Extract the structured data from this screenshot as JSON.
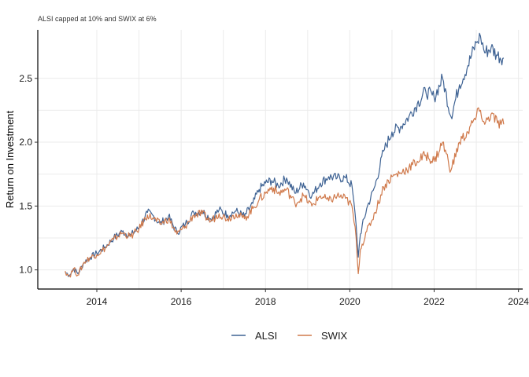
{
  "chart_data": {
    "type": "line",
    "subtitle": "ALSI capped at 10% and SWIX at 6%",
    "ylabel": "Return on Investment",
    "xlabel": "",
    "xlim": [
      2012.6,
      2024.1
    ],
    "ylim": [
      0.85,
      2.88
    ],
    "x_ticks": [
      2014,
      2016,
      2018,
      2020,
      2022,
      2024
    ],
    "x_tick_labels": [
      "2014",
      "2016",
      "2018",
      "2020",
      "2022",
      "2024"
    ],
    "y_ticks": [
      1.0,
      1.5,
      2.0,
      2.5
    ],
    "y_tick_labels": [
      "1.0",
      "1.5",
      "2.0",
      "2.5"
    ],
    "grid": true,
    "legend_position": "bottom",
    "series": [
      {
        "name": "ALSI",
        "color": "#3f6394",
        "x": [
          2013.25,
          2013.35,
          2013.45,
          2013.55,
          2013.7,
          2013.85,
          2014.0,
          2014.2,
          2014.4,
          2014.6,
          2014.8,
          2015.0,
          2015.2,
          2015.35,
          2015.5,
          2015.7,
          2015.9,
          2016.1,
          2016.3,
          2016.5,
          2016.7,
          2016.9,
          2017.1,
          2017.3,
          2017.5,
          2017.7,
          2017.85,
          2018.0,
          2018.15,
          2018.3,
          2018.5,
          2018.7,
          2018.9,
          2019.1,
          2019.3,
          2019.5,
          2019.7,
          2019.9,
          2020.05,
          2020.15,
          2020.2,
          2020.25,
          2020.4,
          2020.6,
          2020.8,
          2021.0,
          2021.2,
          2021.4,
          2021.6,
          2021.8,
          2022.0,
          2022.2,
          2022.4,
          2022.6,
          2022.8,
          2023.0,
          2023.1,
          2023.2,
          2023.35,
          2023.5,
          2023.65
        ],
        "y": [
          0.98,
          0.96,
          1.01,
          0.97,
          1.06,
          1.1,
          1.13,
          1.18,
          1.25,
          1.3,
          1.27,
          1.33,
          1.45,
          1.42,
          1.36,
          1.42,
          1.29,
          1.36,
          1.45,
          1.46,
          1.4,
          1.47,
          1.43,
          1.46,
          1.42,
          1.52,
          1.63,
          1.68,
          1.7,
          1.66,
          1.72,
          1.6,
          1.68,
          1.58,
          1.68,
          1.73,
          1.72,
          1.72,
          1.66,
          1.35,
          1.1,
          1.28,
          1.48,
          1.66,
          1.93,
          2.08,
          2.12,
          2.2,
          2.3,
          2.4,
          2.35,
          2.5,
          2.2,
          2.45,
          2.6,
          2.78,
          2.83,
          2.7,
          2.74,
          2.68,
          2.66
        ]
      },
      {
        "name": "SWIX",
        "color": "#d07a4c",
        "x": [
          2013.25,
          2013.35,
          2013.45,
          2013.55,
          2013.7,
          2013.85,
          2014.0,
          2014.2,
          2014.4,
          2014.6,
          2014.8,
          2015.0,
          2015.2,
          2015.35,
          2015.5,
          2015.7,
          2015.9,
          2016.1,
          2016.3,
          2016.5,
          2016.7,
          2016.9,
          2017.1,
          2017.3,
          2017.5,
          2017.7,
          2017.85,
          2018.0,
          2018.15,
          2018.3,
          2018.5,
          2018.7,
          2018.9,
          2019.1,
          2019.3,
          2019.5,
          2019.7,
          2019.9,
          2020.05,
          2020.15,
          2020.2,
          2020.25,
          2020.4,
          2020.6,
          2020.8,
          2021.0,
          2021.2,
          2021.4,
          2021.6,
          2021.8,
          2022.0,
          2022.2,
          2022.4,
          2022.6,
          2022.8,
          2023.0,
          2023.1,
          2023.2,
          2023.35,
          2023.5,
          2023.65
        ],
        "y": [
          0.99,
          0.95,
          1.01,
          0.96,
          1.06,
          1.1,
          1.12,
          1.17,
          1.24,
          1.29,
          1.26,
          1.32,
          1.43,
          1.4,
          1.36,
          1.4,
          1.28,
          1.34,
          1.43,
          1.44,
          1.38,
          1.44,
          1.4,
          1.44,
          1.4,
          1.48,
          1.55,
          1.6,
          1.65,
          1.6,
          1.63,
          1.52,
          1.58,
          1.5,
          1.58,
          1.54,
          1.58,
          1.56,
          1.5,
          1.25,
          0.97,
          1.16,
          1.3,
          1.45,
          1.65,
          1.73,
          1.76,
          1.8,
          1.85,
          1.9,
          1.85,
          2.0,
          1.78,
          2.0,
          2.08,
          2.2,
          2.25,
          2.14,
          2.22,
          2.15,
          2.14
        ]
      }
    ]
  }
}
